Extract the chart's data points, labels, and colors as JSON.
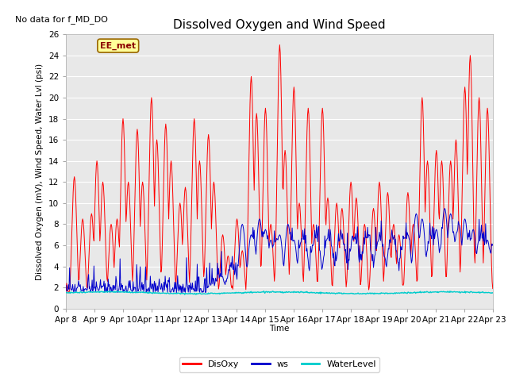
{
  "title": "Dissolved Oxygen and Wind Speed",
  "no_data_text": "No data for f_MD_DO",
  "annotation_text": "EE_met",
  "ylabel": "Dissolved Oxygen (mV), Wind Speed, Water Lvl (psi)",
  "xlabel": "Time",
  "ylim": [
    0,
    26
  ],
  "xtick_labels": [
    "Apr 8",
    "Apr 9",
    "Apr 10",
    "Apr 11",
    "Apr 12",
    "Apr 13",
    "Apr 14",
    "Apr 15",
    "Apr 16",
    "Apr 17",
    "Apr 18",
    "Apr 19",
    "Apr 20",
    "Apr 21",
    "Apr 22",
    "Apr 23"
  ],
  "bg_color": "#e8e8e8",
  "fig_color": "#ffffff",
  "line_disoxy_color": "#ff0000",
  "line_ws_color": "#0000cc",
  "line_wl_color": "#00cccc",
  "legend_labels": [
    "DisOxy",
    "ws",
    "WaterLevel"
  ],
  "title_fontsize": 11,
  "axis_label_fontsize": 7.5,
  "tick_fontsize": 7.5,
  "annot_fontsize": 8,
  "no_data_fontsize": 8,
  "legend_fontsize": 8
}
